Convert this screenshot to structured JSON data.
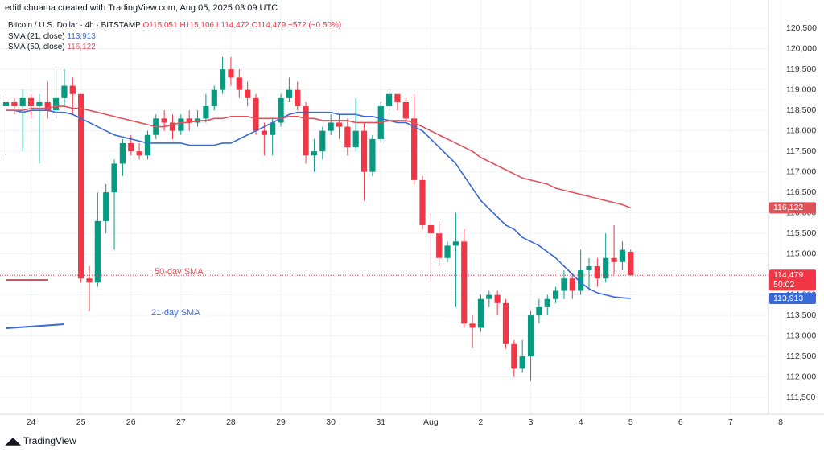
{
  "chart_data": {
    "type": "candlestick",
    "header": "edithchuama created with TradingView.com, Aug 05, 2025 03:09 UTC",
    "symbol": "Bitcoin / U.S. Dollar · 4h · BITSTAMP",
    "ohlc_text": [
      "O115,051",
      "H115,106",
      "L114,472",
      "C114,479",
      "−572 (−0.50%)"
    ],
    "footer": "TradingView",
    "up_color": "#089981",
    "down_color": "#f23645",
    "last_price_label": "114,479",
    "countdown": "50:02",
    "categories": [
      null,
      null,
      null,
      "24",
      null,
      null,
      null,
      null,
      null,
      "25",
      null,
      null,
      null,
      null,
      null,
      "26",
      null,
      null,
      null,
      null,
      null,
      "27",
      null,
      null,
      null,
      null,
      null,
      "28",
      null,
      null,
      null,
      null,
      null,
      "29",
      null,
      null,
      null,
      null,
      null,
      "30",
      null,
      null,
      null,
      null,
      null,
      "31",
      null,
      null,
      null,
      null,
      null,
      "Aug",
      null,
      null,
      null,
      null,
      null,
      "2",
      null,
      null,
      null,
      null,
      null,
      "3",
      null,
      null,
      null,
      null,
      null,
      "4",
      null,
      null,
      null,
      null,
      null,
      "5",
      null,
      null,
      null,
      null,
      null,
      "6",
      null,
      null,
      null,
      null,
      null,
      "7",
      null,
      null,
      null,
      null,
      null,
      "8"
    ],
    "open": [
      118600,
      118700,
      118600,
      118800,
      118600,
      118700,
      118500,
      118800,
      119100,
      118900,
      114400,
      114300,
      115800,
      116500,
      117200,
      117700,
      117500,
      117400,
      117900,
      118300,
      118200,
      118000,
      118300,
      118200,
      118300,
      118600,
      119000,
      119500,
      119300,
      119000,
      118800,
      118000,
      117900,
      118200,
      118800,
      119000,
      118600,
      117400,
      117500,
      118000,
      118200,
      118100,
      117600,
      118000,
      117000,
      117800,
      118600,
      118900,
      118700,
      118300,
      116800,
      115700,
      115500,
      114900,
      115200,
      115300,
      113300,
      113200,
      113900,
      114000,
      113800,
      112800,
      112200,
      112500,
      113500,
      113700,
      113900,
      114100,
      114400,
      114100,
      114600,
      114700,
      114400,
      114900,
      114800,
      115051,
      null,
      null,
      null,
      null,
      null,
      null,
      null,
      null,
      null,
      null,
      null,
      null,
      null,
      null,
      null,
      null,
      null,
      null
    ],
    "high": [
      118900,
      118800,
      119000,
      118900,
      118900,
      119200,
      119500,
      119500,
      119300,
      118900,
      114700,
      116500,
      116700,
      117300,
      117800,
      117900,
      117700,
      118000,
      118400,
      118500,
      118400,
      118400,
      118500,
      118500,
      118900,
      119100,
      119800,
      119800,
      119500,
      119200,
      118900,
      118200,
      118300,
      118900,
      119300,
      119200,
      118700,
      117800,
      118100,
      118400,
      118400,
      118300,
      118800,
      118200,
      117900,
      118700,
      119000,
      118900,
      118800,
      118900,
      116900,
      116000,
      115800,
      115300,
      116000,
      115600,
      113500,
      114000,
      114100,
      114100,
      113900,
      112900,
      112900,
      113600,
      113900,
      114000,
      114200,
      114600,
      114500,
      115100,
      114900,
      114900,
      115500,
      115700,
      115300,
      115106,
      null,
      null,
      null,
      null,
      null,
      null,
      null,
      null,
      null,
      null,
      null,
      null,
      null,
      null,
      null,
      null,
      null,
      null
    ],
    "low": [
      117400,
      118400,
      117500,
      118300,
      117200,
      118300,
      118300,
      118600,
      118400,
      114300,
      113600,
      114200,
      115500,
      115100,
      116900,
      117400,
      117300,
      117300,
      117800,
      118000,
      117800,
      117900,
      118000,
      118100,
      118200,
      118500,
      118900,
      119100,
      118800,
      118600,
      117900,
      117400,
      117400,
      118100,
      118700,
      118500,
      117200,
      117000,
      117300,
      117900,
      117800,
      117400,
      117500,
      116300,
      116900,
      117700,
      118400,
      118500,
      118200,
      116700,
      115600,
      114300,
      114700,
      114800,
      113700,
      113200,
      112700,
      113100,
      113700,
      113500,
      112700,
      112000,
      112100,
      111900,
      113300,
      113500,
      113800,
      113900,
      113900,
      114000,
      114100,
      114200,
      114300,
      114500,
      114600,
      114472,
      null,
      null,
      null,
      null,
      null,
      null,
      null,
      null,
      null,
      null,
      null,
      null,
      null,
      null,
      null,
      null,
      null,
      null
    ],
    "close": [
      118700,
      118600,
      118800,
      118600,
      118700,
      118500,
      118800,
      119100,
      118900,
      114400,
      114300,
      115800,
      116500,
      117200,
      117700,
      117500,
      117400,
      117900,
      118300,
      118200,
      118000,
      118300,
      118200,
      118300,
      118600,
      119000,
      119500,
      119300,
      119000,
      118800,
      118000,
      117900,
      118200,
      118800,
      119000,
      118600,
      117400,
      117500,
      118000,
      118200,
      118100,
      117600,
      118000,
      117000,
      117800,
      118600,
      118900,
      118700,
      118300,
      116800,
      115700,
      115500,
      114900,
      115200,
      115300,
      113300,
      113200,
      113900,
      114000,
      113800,
      112800,
      112200,
      112500,
      113500,
      113700,
      113900,
      114100,
      114400,
      114100,
      114600,
      114700,
      114400,
      114900,
      114800,
      115100,
      114479,
      null,
      null,
      null,
      null,
      null,
      null,
      null,
      null,
      null,
      null,
      null,
      null,
      null,
      null,
      null,
      null,
      null,
      null
    ],
    "series": [
      {
        "name": "SMA (21, close)",
        "color": "#3a68d8",
        "value_label": "113,913",
        "values": [
          118500,
          118500,
          118450,
          118500,
          118500,
          118500,
          118450,
          118450,
          118400,
          118300,
          118200,
          118100,
          118000,
          117900,
          117850,
          117800,
          117750,
          117700,
          117700,
          117700,
          117700,
          117700,
          117650,
          117650,
          117650,
          117650,
          117700,
          117700,
          117800,
          117900,
          118000,
          118100,
          118200,
          118300,
          118400,
          118450,
          118450,
          118450,
          118450,
          118450,
          118400,
          118400,
          118400,
          118350,
          118350,
          118300,
          118250,
          118200,
          118200,
          118100,
          118000,
          117800,
          117600,
          117400,
          117200,
          116900,
          116600,
          116300,
          116100,
          115900,
          115700,
          115600,
          115400,
          115300,
          115200,
          115050,
          114900,
          114700,
          114500,
          114300,
          114150,
          114050,
          114000,
          113950,
          113930,
          113913,
          null,
          null,
          null,
          null,
          null,
          null,
          null,
          null,
          null,
          null,
          null,
          null,
          null,
          null,
          null,
          null,
          null,
          null
        ]
      },
      {
        "name": "SMA (50, close)",
        "color": "#e05259",
        "value_label": "116,122",
        "values": [
          118500,
          118500,
          118500,
          118550,
          118550,
          118550,
          118600,
          118600,
          118550,
          118550,
          118500,
          118450,
          118400,
          118350,
          118300,
          118250,
          118200,
          118150,
          118100,
          118100,
          118150,
          118200,
          118200,
          118250,
          118250,
          118300,
          118300,
          118350,
          118350,
          118350,
          118300,
          118300,
          118300,
          118300,
          118350,
          118350,
          118300,
          118300,
          118250,
          118250,
          118250,
          118250,
          118200,
          118200,
          118200,
          118200,
          118250,
          118250,
          118250,
          118200,
          118100,
          118000,
          117900,
          117800,
          117700,
          117600,
          117500,
          117350,
          117250,
          117150,
          117050,
          116950,
          116850,
          116800,
          116750,
          116700,
          116600,
          116550,
          116500,
          116450,
          116400,
          116350,
          116300,
          116250,
          116200,
          116122,
          null,
          null,
          null,
          null,
          null,
          null,
          null,
          null,
          null,
          null,
          null,
          null,
          null,
          null,
          null,
          null,
          null,
          null
        ]
      }
    ],
    "annotations": [
      {
        "text": "50-day SMA",
        "color": "#e05259"
      },
      {
        "text": "21-day SMA",
        "color": "#3a68d8"
      }
    ],
    "ylim": [
      111090,
      121190
    ],
    "yticks": [
      {
        "value": 111500,
        "label": "111,500"
      },
      {
        "value": 112000,
        "label": "112,000"
      },
      {
        "value": 112500,
        "label": "112,500"
      },
      {
        "value": 113000,
        "label": "113,000"
      },
      {
        "value": 113500,
        "label": "113,500"
      },
      {
        "value": 114000,
        "label": "114,000"
      },
      {
        "value": 114500,
        "label": "114,500"
      },
      {
        "value": 115000,
        "label": "115,000"
      },
      {
        "value": 115500,
        "label": "115,500"
      },
      {
        "value": 116000,
        "label": "116,000"
      },
      {
        "value": 116500,
        "label": "116,500"
      },
      {
        "value": 117000,
        "label": "117,000"
      },
      {
        "value": 117500,
        "label": "117,500"
      },
      {
        "value": 118000,
        "label": "118,000"
      },
      {
        "value": 118500,
        "label": "118,500"
      },
      {
        "value": 119000,
        "label": "119,000"
      },
      {
        "value": 119500,
        "label": "119,500"
      },
      {
        "value": 120000,
        "label": "120,000"
      },
      {
        "value": 120500,
        "label": "120,500"
      }
    ],
    "grid": true
  }
}
